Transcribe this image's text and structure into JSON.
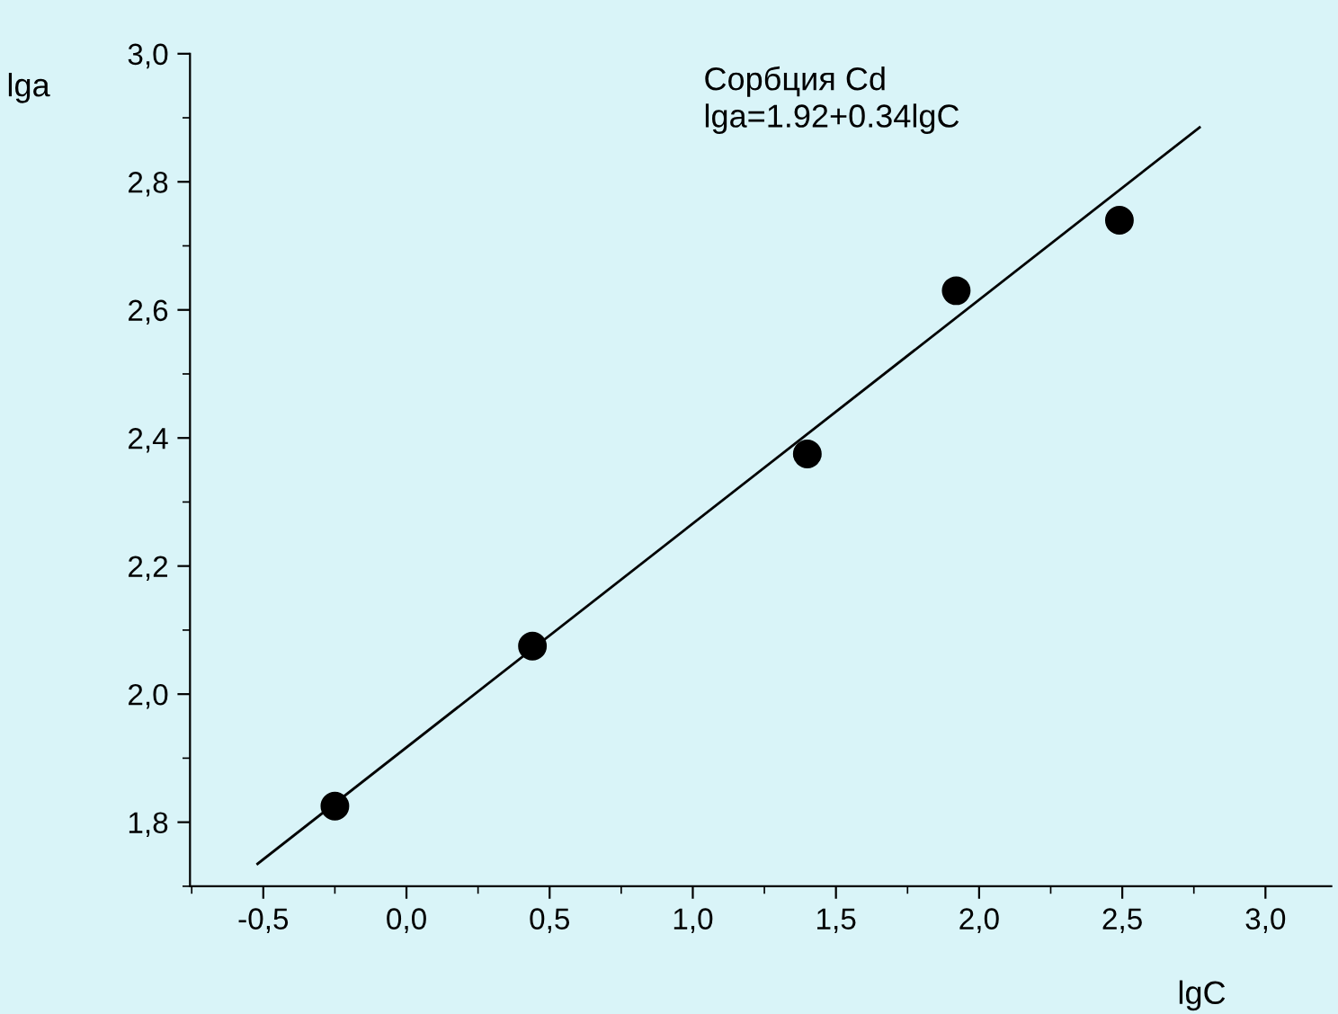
{
  "chart_data": {
    "type": "scatter",
    "xlabel": "lgC",
    "ylabel": "lga",
    "annotations": [
      "Сорбция Cd",
      "lga=1.92+0.34lgC"
    ],
    "series": [
      {
        "color": "#000000",
        "x": [
          -0.25,
          0.44,
          1.4,
          1.92,
          2.49
        ],
        "values": [
          1.825,
          2.075,
          2.375,
          2.63,
          2.74
        ],
        "marker": "circle"
      },
      {
        "type": "line",
        "color": "#000000",
        "x": [
          -0.52,
          2.77
        ],
        "values": [
          1.735,
          2.885
        ],
        "marker": "none",
        "line_style": "solid"
      }
    ],
    "xlim": [
      -0.756,
      3.23
    ],
    "ylim": [
      1.7,
      3.0
    ],
    "xticks": [
      {
        "value": -0.5,
        "label": "-0,5"
      },
      {
        "value": 0.0,
        "label": "0,0"
      },
      {
        "value": 0.5,
        "label": "0,5"
      },
      {
        "value": 1.0,
        "label": "1,0"
      },
      {
        "value": 1.5,
        "label": "1,5"
      },
      {
        "value": 2.0,
        "label": "2,0"
      },
      {
        "value": 2.5,
        "label": "2,5"
      },
      {
        "value": 3.0,
        "label": "3,0"
      }
    ],
    "yticks": [
      {
        "value": 1.8,
        "label": "1,8"
      },
      {
        "value": 2.0,
        "label": "2,0"
      },
      {
        "value": 2.2,
        "label": "2,2"
      },
      {
        "value": 2.4,
        "label": "2,4"
      },
      {
        "value": 2.6,
        "label": "2,6"
      },
      {
        "value": 2.8,
        "label": "2,8"
      },
      {
        "value": 3.0,
        "label": "3,0"
      }
    ],
    "grid": false,
    "legend": false
  }
}
